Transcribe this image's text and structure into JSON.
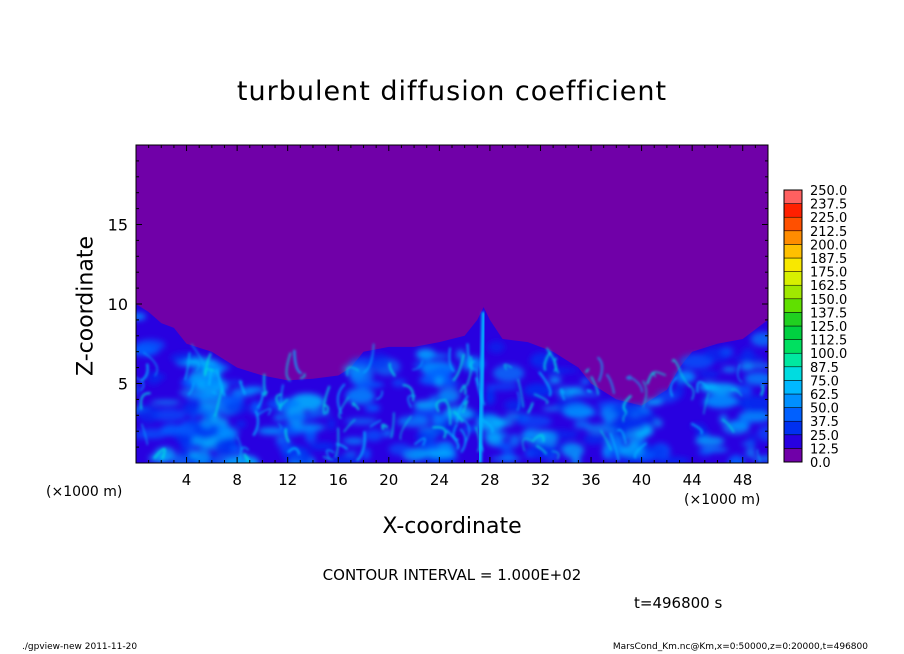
{
  "chart_data": {
    "type": "heatmap",
    "title": "turbulent diffusion coefficient",
    "xlabel": "X-coordinate",
    "ylabel": "Z-coordinate",
    "x_unit": "(×1000 m)",
    "y_unit": "(×1000 m)",
    "xlim": [
      0,
      50
    ],
    "ylim": [
      0,
      20
    ],
    "x_ticks": [
      4,
      8,
      12,
      16,
      20,
      24,
      28,
      32,
      36,
      40,
      44,
      48
    ],
    "y_ticks": [
      5,
      10,
      15
    ],
    "colorbar": {
      "levels": [
        "0.0",
        "12.5",
        "25.0",
        "37.5",
        "50.0",
        "62.5",
        "75.0",
        "87.5",
        "100.0",
        "112.5",
        "125.0",
        "137.5",
        "150.0",
        "162.5",
        "175.0",
        "187.5",
        "200.0",
        "212.5",
        "225.0",
        "237.5",
        "250.0"
      ],
      "colors": [
        "#7000a8",
        "#2800e0",
        "#0030f0",
        "#0060ff",
        "#0090ff",
        "#00b8ff",
        "#00dce0",
        "#00e8a0",
        "#00e060",
        "#00d040",
        "#20d020",
        "#60e000",
        "#a0e800",
        "#d8f000",
        "#f8e800",
        "#ffc000",
        "#ff8c00",
        "#ff5000",
        "#ff2000",
        "#ff6060"
      ]
    },
    "contour_interval": "CONTOUR INTERVAL = 1.000E+02",
    "time": "t=496800  s"
  },
  "footer": {
    "left": "./gpview-new   2011-11-20",
    "right": "MarsCond_Km.nc@Km,x=0:50000,z=0:20000,t=496800"
  }
}
